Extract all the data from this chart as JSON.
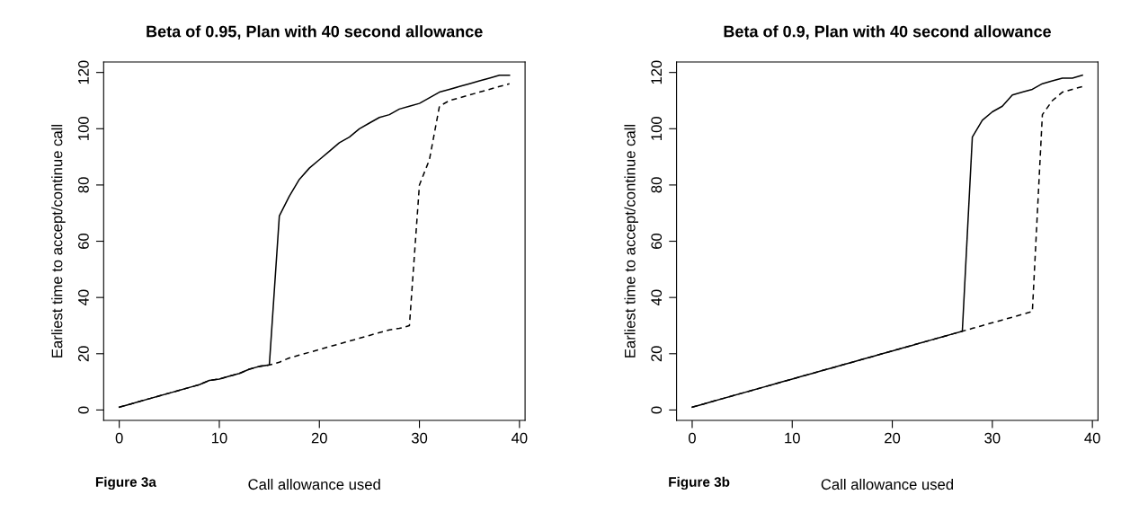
{
  "chart_data": [
    {
      "type": "line",
      "title": "Beta of 0.95, Plan with 40 second allowance",
      "xlabel": "Call allowance used",
      "ylabel": "Earliest time to accept/continue call",
      "annotations": [
        "Figure 3a"
      ],
      "x": [
        0,
        1,
        2,
        3,
        4,
        5,
        6,
        7,
        8,
        9,
        10,
        11,
        12,
        13,
        14,
        15,
        16,
        17,
        18,
        19,
        20,
        21,
        22,
        23,
        24,
        25,
        26,
        27,
        28,
        29,
        30,
        31,
        32,
        33,
        34,
        35,
        36,
        37,
        38,
        39
      ],
      "xlim": [
        -1.56,
        40.56
      ],
      "xticks": [
        0,
        10,
        20,
        30,
        40
      ],
      "ylim": [
        -3.72,
        123.72
      ],
      "yticks": [
        0,
        20,
        40,
        60,
        80,
        100,
        120
      ],
      "grid": false,
      "series": [
        {
          "color": "#000000",
          "line_style": "solid",
          "values": [
            1,
            2,
            3,
            4,
            5,
            6,
            7,
            8,
            9,
            10.5,
            11,
            12,
            13,
            14.5,
            15.5,
            16,
            69,
            76,
            82,
            86,
            89,
            92,
            95,
            97,
            100,
            102,
            104,
            105,
            107,
            108,
            109,
            111,
            113,
            114,
            115,
            116,
            117,
            118,
            119,
            119
          ]
        },
        {
          "color": "#000000",
          "line_style": "dashed",
          "values": [
            1,
            2,
            3,
            4,
            5,
            6,
            7,
            8,
            9,
            10.5,
            11,
            12,
            13,
            14.5,
            15.5,
            16,
            17,
            18.5,
            19.5,
            20.5,
            21.5,
            22.5,
            23.5,
            24.5,
            25.5,
            26.5,
            27.5,
            28.5,
            29,
            30,
            80,
            89,
            108,
            110,
            111,
            112,
            113,
            114,
            115,
            116
          ]
        }
      ]
    },
    {
      "type": "line",
      "title": "Beta of 0.9, Plan with 40 second allowance",
      "xlabel": "Call allowance used",
      "ylabel": "Earliest time to accept/continue call",
      "annotations": [
        "Figure 3b"
      ],
      "x": [
        0,
        1,
        2,
        3,
        4,
        5,
        6,
        7,
        8,
        9,
        10,
        11,
        12,
        13,
        14,
        15,
        16,
        17,
        18,
        19,
        20,
        21,
        22,
        23,
        24,
        25,
        26,
        27,
        28,
        29,
        30,
        31,
        32,
        33,
        34,
        35,
        36,
        37,
        38,
        39
      ],
      "xlim": [
        -1.56,
        40.56
      ],
      "xticks": [
        0,
        10,
        20,
        30,
        40
      ],
      "ylim": [
        -3.72,
        123.72
      ],
      "yticks": [
        0,
        20,
        40,
        60,
        80,
        100,
        120
      ],
      "grid": false,
      "series": [
        {
          "color": "#000000",
          "line_style": "solid",
          "values": [
            1,
            2,
            3,
            4,
            5,
            6,
            7,
            8,
            9,
            10,
            11,
            12,
            13,
            14,
            15,
            16,
            17,
            18,
            19,
            20,
            21,
            22,
            23,
            24,
            25,
            26,
            27,
            28,
            97,
            103,
            106,
            108,
            112,
            113,
            114,
            116,
            117,
            118,
            118,
            119
          ]
        },
        {
          "color": "#000000",
          "line_style": "dashed",
          "values": [
            1,
            2,
            3,
            4,
            5,
            6,
            7,
            8,
            9,
            10,
            11,
            12,
            13,
            14,
            15,
            16,
            17,
            18,
            19,
            20,
            21,
            22,
            23,
            24,
            25,
            26,
            27,
            28,
            29,
            30,
            31,
            32,
            33,
            34,
            35,
            105,
            110,
            113,
            114,
            115
          ]
        }
      ]
    }
  ]
}
